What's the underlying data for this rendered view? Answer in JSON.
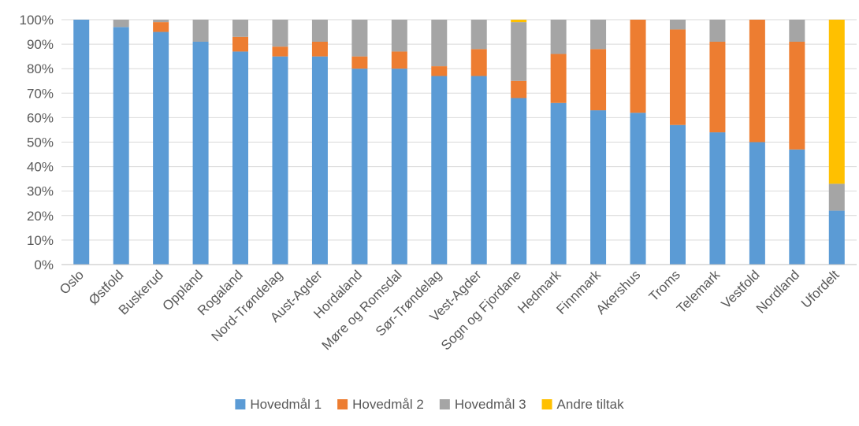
{
  "chart_data": {
    "type": "bar",
    "stacked": true,
    "percent": true,
    "title": "",
    "xlabel": "",
    "ylabel": "",
    "ylim": [
      0,
      100
    ],
    "yticks": [
      "0%",
      "10%",
      "20%",
      "30%",
      "40%",
      "50%",
      "60%",
      "70%",
      "80%",
      "90%",
      "100%"
    ],
    "grid": true,
    "legend_position": "bottom",
    "categories": [
      "Oslo",
      "Østfold",
      "Buskerud",
      "Oppland",
      "Rogaland",
      "Nord-Trøndelag",
      "Aust-Agder",
      "Hordaland",
      "Møre og Romsdal",
      "Sør-Trøndelag",
      "Vest-Agder",
      "Sogn og Fjordane",
      "Hedmark",
      "Finnmark",
      "Akershus",
      "Troms",
      "Telemark",
      "Vestfold",
      "Nordland",
      "Ufordelt"
    ],
    "series": [
      {
        "name": "Hovedmål 1",
        "color": "#5B9BD5",
        "values": [
          100,
          97,
          95,
          91,
          87,
          85,
          85,
          80,
          80,
          77,
          77,
          68,
          66,
          63,
          62,
          57,
          54,
          50,
          47,
          22
        ]
      },
      {
        "name": "Hovedmål 2",
        "color": "#ED7D31",
        "values": [
          0,
          0,
          4,
          0,
          6,
          4,
          6,
          5,
          7,
          4,
          11,
          7,
          20,
          25,
          38,
          39,
          37,
          50,
          44,
          0
        ]
      },
      {
        "name": "Hovedmål 3",
        "color": "#A5A5A5",
        "values": [
          0,
          3,
          1,
          9,
          7,
          11,
          9,
          15,
          13,
          19,
          12,
          24,
          14,
          12,
          0,
          4,
          9,
          0,
          9,
          11
        ]
      },
      {
        "name": "Andre tiltak",
        "color": "#FFC000",
        "values": [
          0,
          0,
          0,
          0,
          0,
          0,
          0,
          0,
          0,
          0,
          0,
          1,
          0,
          0,
          0,
          0,
          0,
          0,
          0,
          67
        ]
      }
    ]
  }
}
